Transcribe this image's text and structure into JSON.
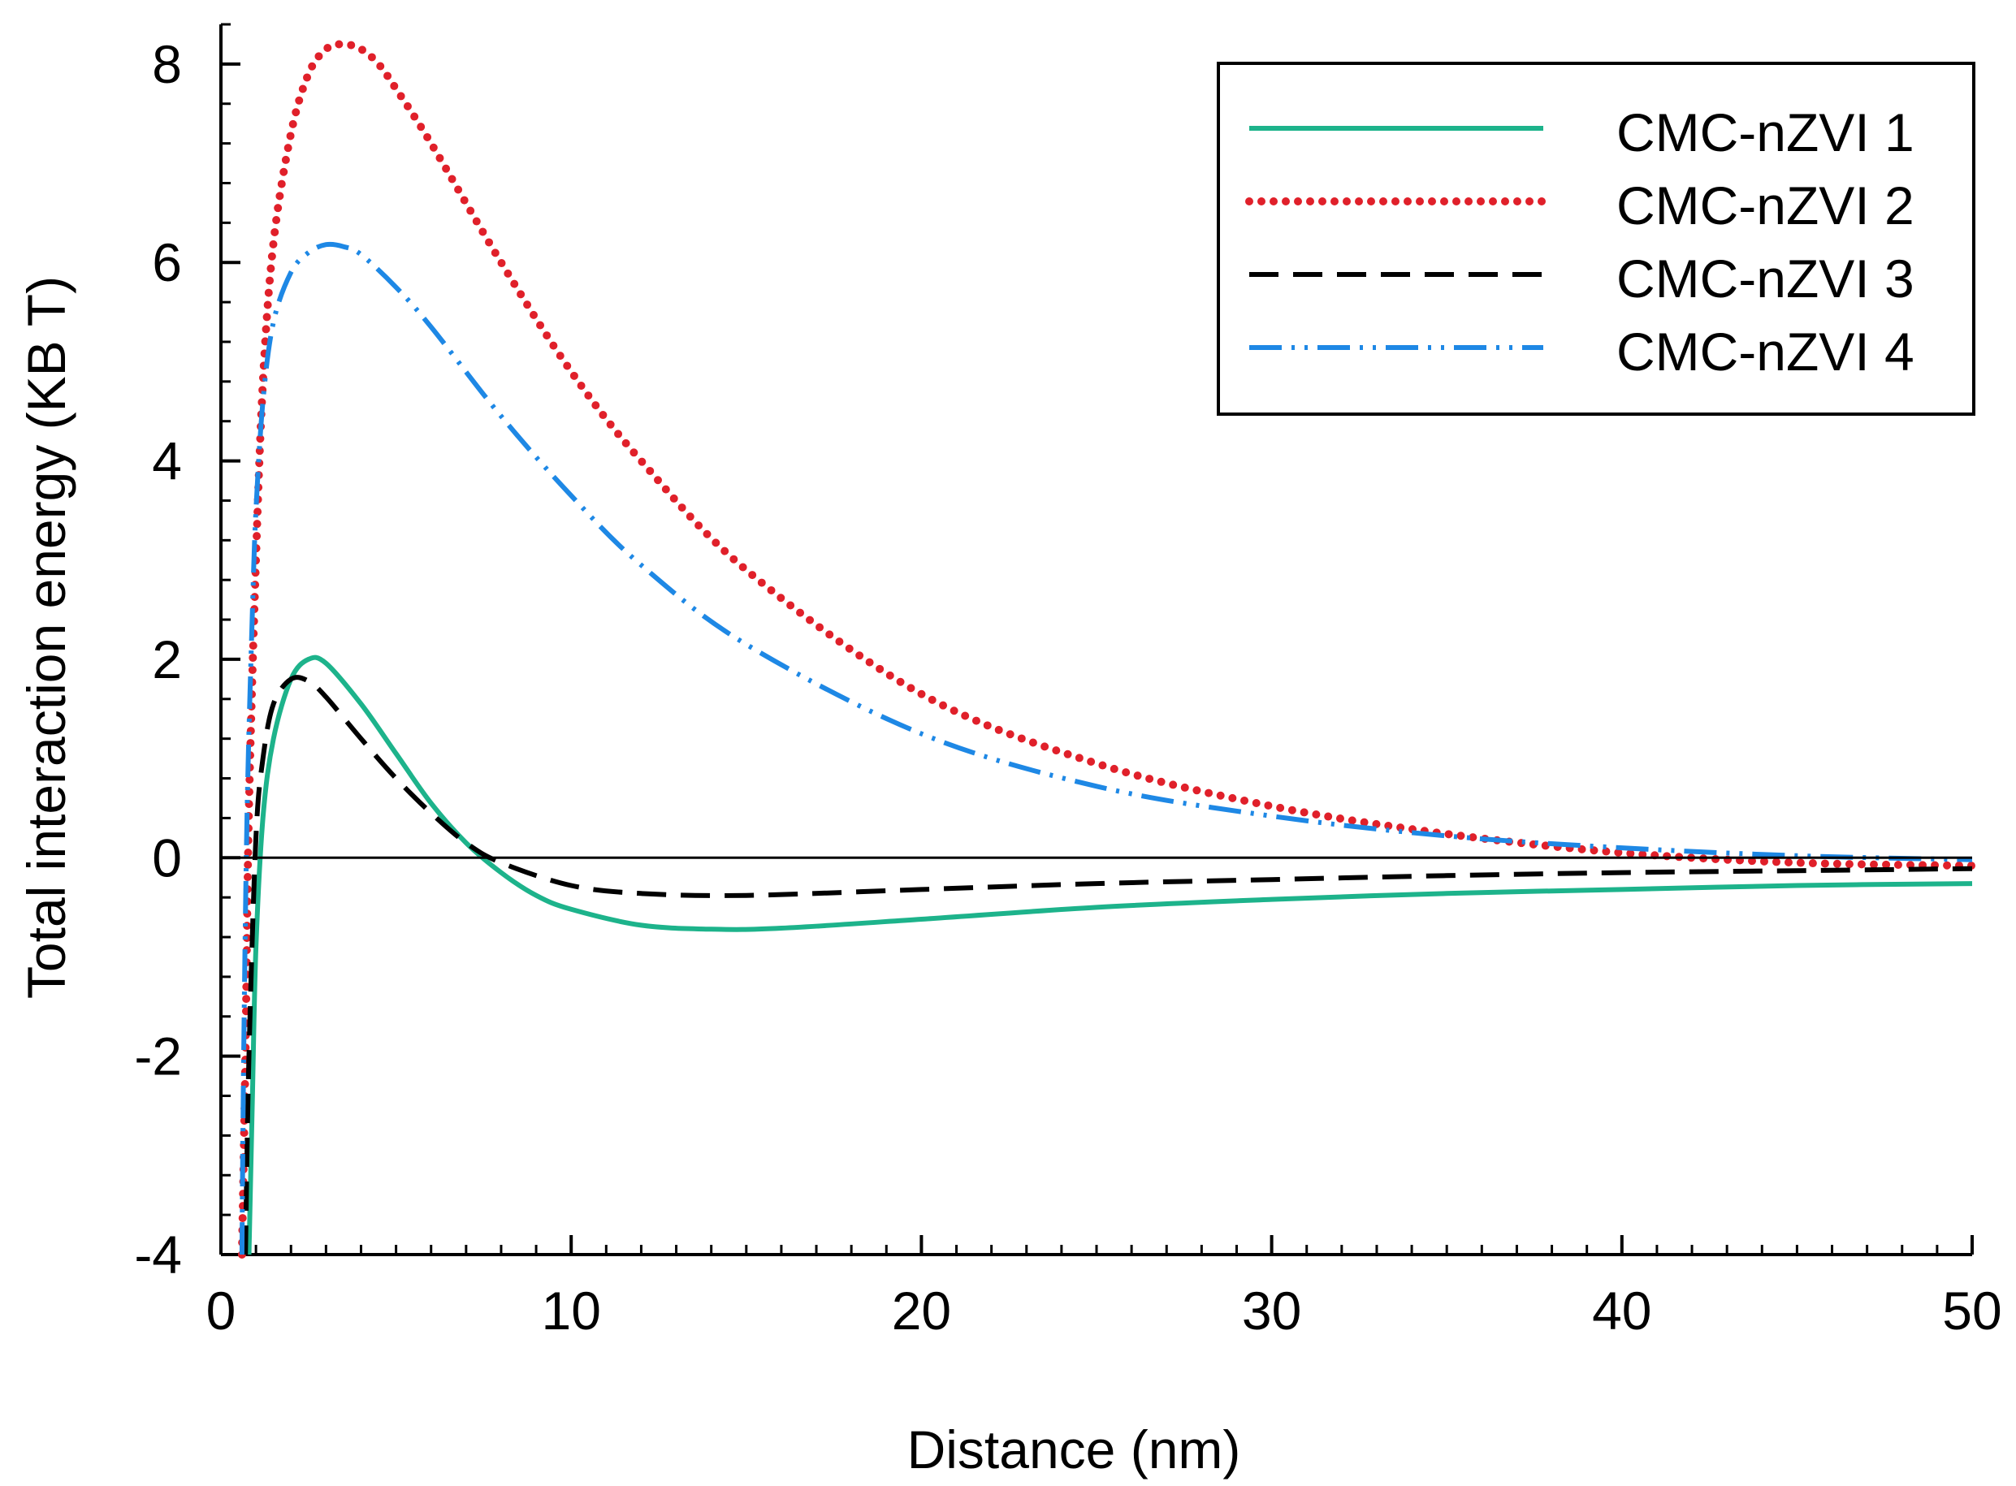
{
  "chart_data": {
    "type": "line",
    "xlabel": "Distance (nm)",
    "ylabel": "Total interaction energy (KB T)",
    "xlim": [
      0,
      50
    ],
    "ylim": [
      -4,
      8.4
    ],
    "xticks": [
      0,
      10,
      20,
      30,
      40,
      50
    ],
    "yticks": [
      -4,
      -2,
      0,
      2,
      4,
      6,
      8
    ],
    "x_minor_step": 1,
    "y_minor_step": 0.4,
    "grid": false,
    "legend_position": "top-right",
    "zero_line": true,
    "series": [
      {
        "name": "CMC-nZVI 1",
        "color": "#1db38b",
        "style": "solid",
        "x": [
          0.8,
          0.9,
          1.0,
          1.2,
          1.5,
          2.0,
          2.5,
          3.0,
          4.0,
          5.0,
          6.0,
          7.0,
          8.0,
          9.0,
          10.0,
          12.0,
          14.0,
          16.0,
          20.0,
          25.0,
          30.0,
          35.0,
          40.0,
          45.0,
          50.0
        ],
        "y": [
          -4.0,
          -2.4,
          -0.9,
          0.4,
          1.2,
          1.8,
          2.0,
          1.96,
          1.55,
          1.05,
          0.55,
          0.15,
          -0.15,
          -0.38,
          -0.52,
          -0.68,
          -0.72,
          -0.71,
          -0.62,
          -0.5,
          -0.42,
          -0.36,
          -0.32,
          -0.28,
          -0.26
        ]
      },
      {
        "name": "CMC-nZVI 2",
        "color": "#e0202a",
        "style": "dotted",
        "x": [
          0.6,
          0.7,
          0.8,
          1.0,
          1.2,
          1.5,
          2.0,
          2.5,
          3.0,
          3.5,
          4.0,
          4.5,
          5.0,
          6.0,
          8.0,
          10.0,
          12.0,
          15.0,
          20.0,
          25.0,
          30.0,
          35.0,
          40.0,
          45.0,
          50.0
        ],
        "y": [
          -4.0,
          -2.0,
          0.5,
          3.0,
          4.8,
          6.2,
          7.3,
          7.9,
          8.15,
          8.2,
          8.15,
          8.0,
          7.75,
          7.2,
          6.0,
          4.9,
          4.0,
          2.9,
          1.65,
          0.95,
          0.52,
          0.24,
          0.05,
          -0.05,
          -0.08
        ]
      },
      {
        "name": "CMC-nZVI 3",
        "color": "#000000",
        "style": "dashed",
        "x": [
          0.7,
          0.8,
          1.0,
          1.2,
          1.5,
          2.0,
          2.5,
          3.0,
          4.0,
          5.0,
          6.0,
          7.0,
          8.0,
          10.0,
          12.0,
          15.0,
          20.0,
          25.0,
          30.0,
          35.0,
          40.0,
          45.0,
          50.0
        ],
        "y": [
          -4.0,
          -2.0,
          0.2,
          1.0,
          1.55,
          1.8,
          1.78,
          1.62,
          1.2,
          0.8,
          0.45,
          0.15,
          -0.05,
          -0.28,
          -0.36,
          -0.38,
          -0.32,
          -0.26,
          -0.22,
          -0.18,
          -0.15,
          -0.13,
          -0.11
        ]
      },
      {
        "name": "CMC-nZVI 4",
        "color": "#1e88e5",
        "style": "dashdotdot",
        "x": [
          0.6,
          0.65,
          0.75,
          0.9,
          1.0,
          1.2,
          1.5,
          2.0,
          2.5,
          3.0,
          3.5,
          4.0,
          5.0,
          6.0,
          8.0,
          10.0,
          12.0,
          15.0,
          20.0,
          25.0,
          30.0,
          35.0,
          40.0,
          45.0,
          50.0
        ],
        "y": [
          -4.0,
          -2.0,
          0.5,
          2.5,
          3.5,
          4.6,
          5.4,
          5.9,
          6.1,
          6.18,
          6.16,
          6.08,
          5.75,
          5.35,
          4.45,
          3.65,
          2.95,
          2.15,
          1.25,
          0.72,
          0.42,
          0.22,
          0.1,
          0.02,
          -0.02
        ]
      }
    ]
  }
}
